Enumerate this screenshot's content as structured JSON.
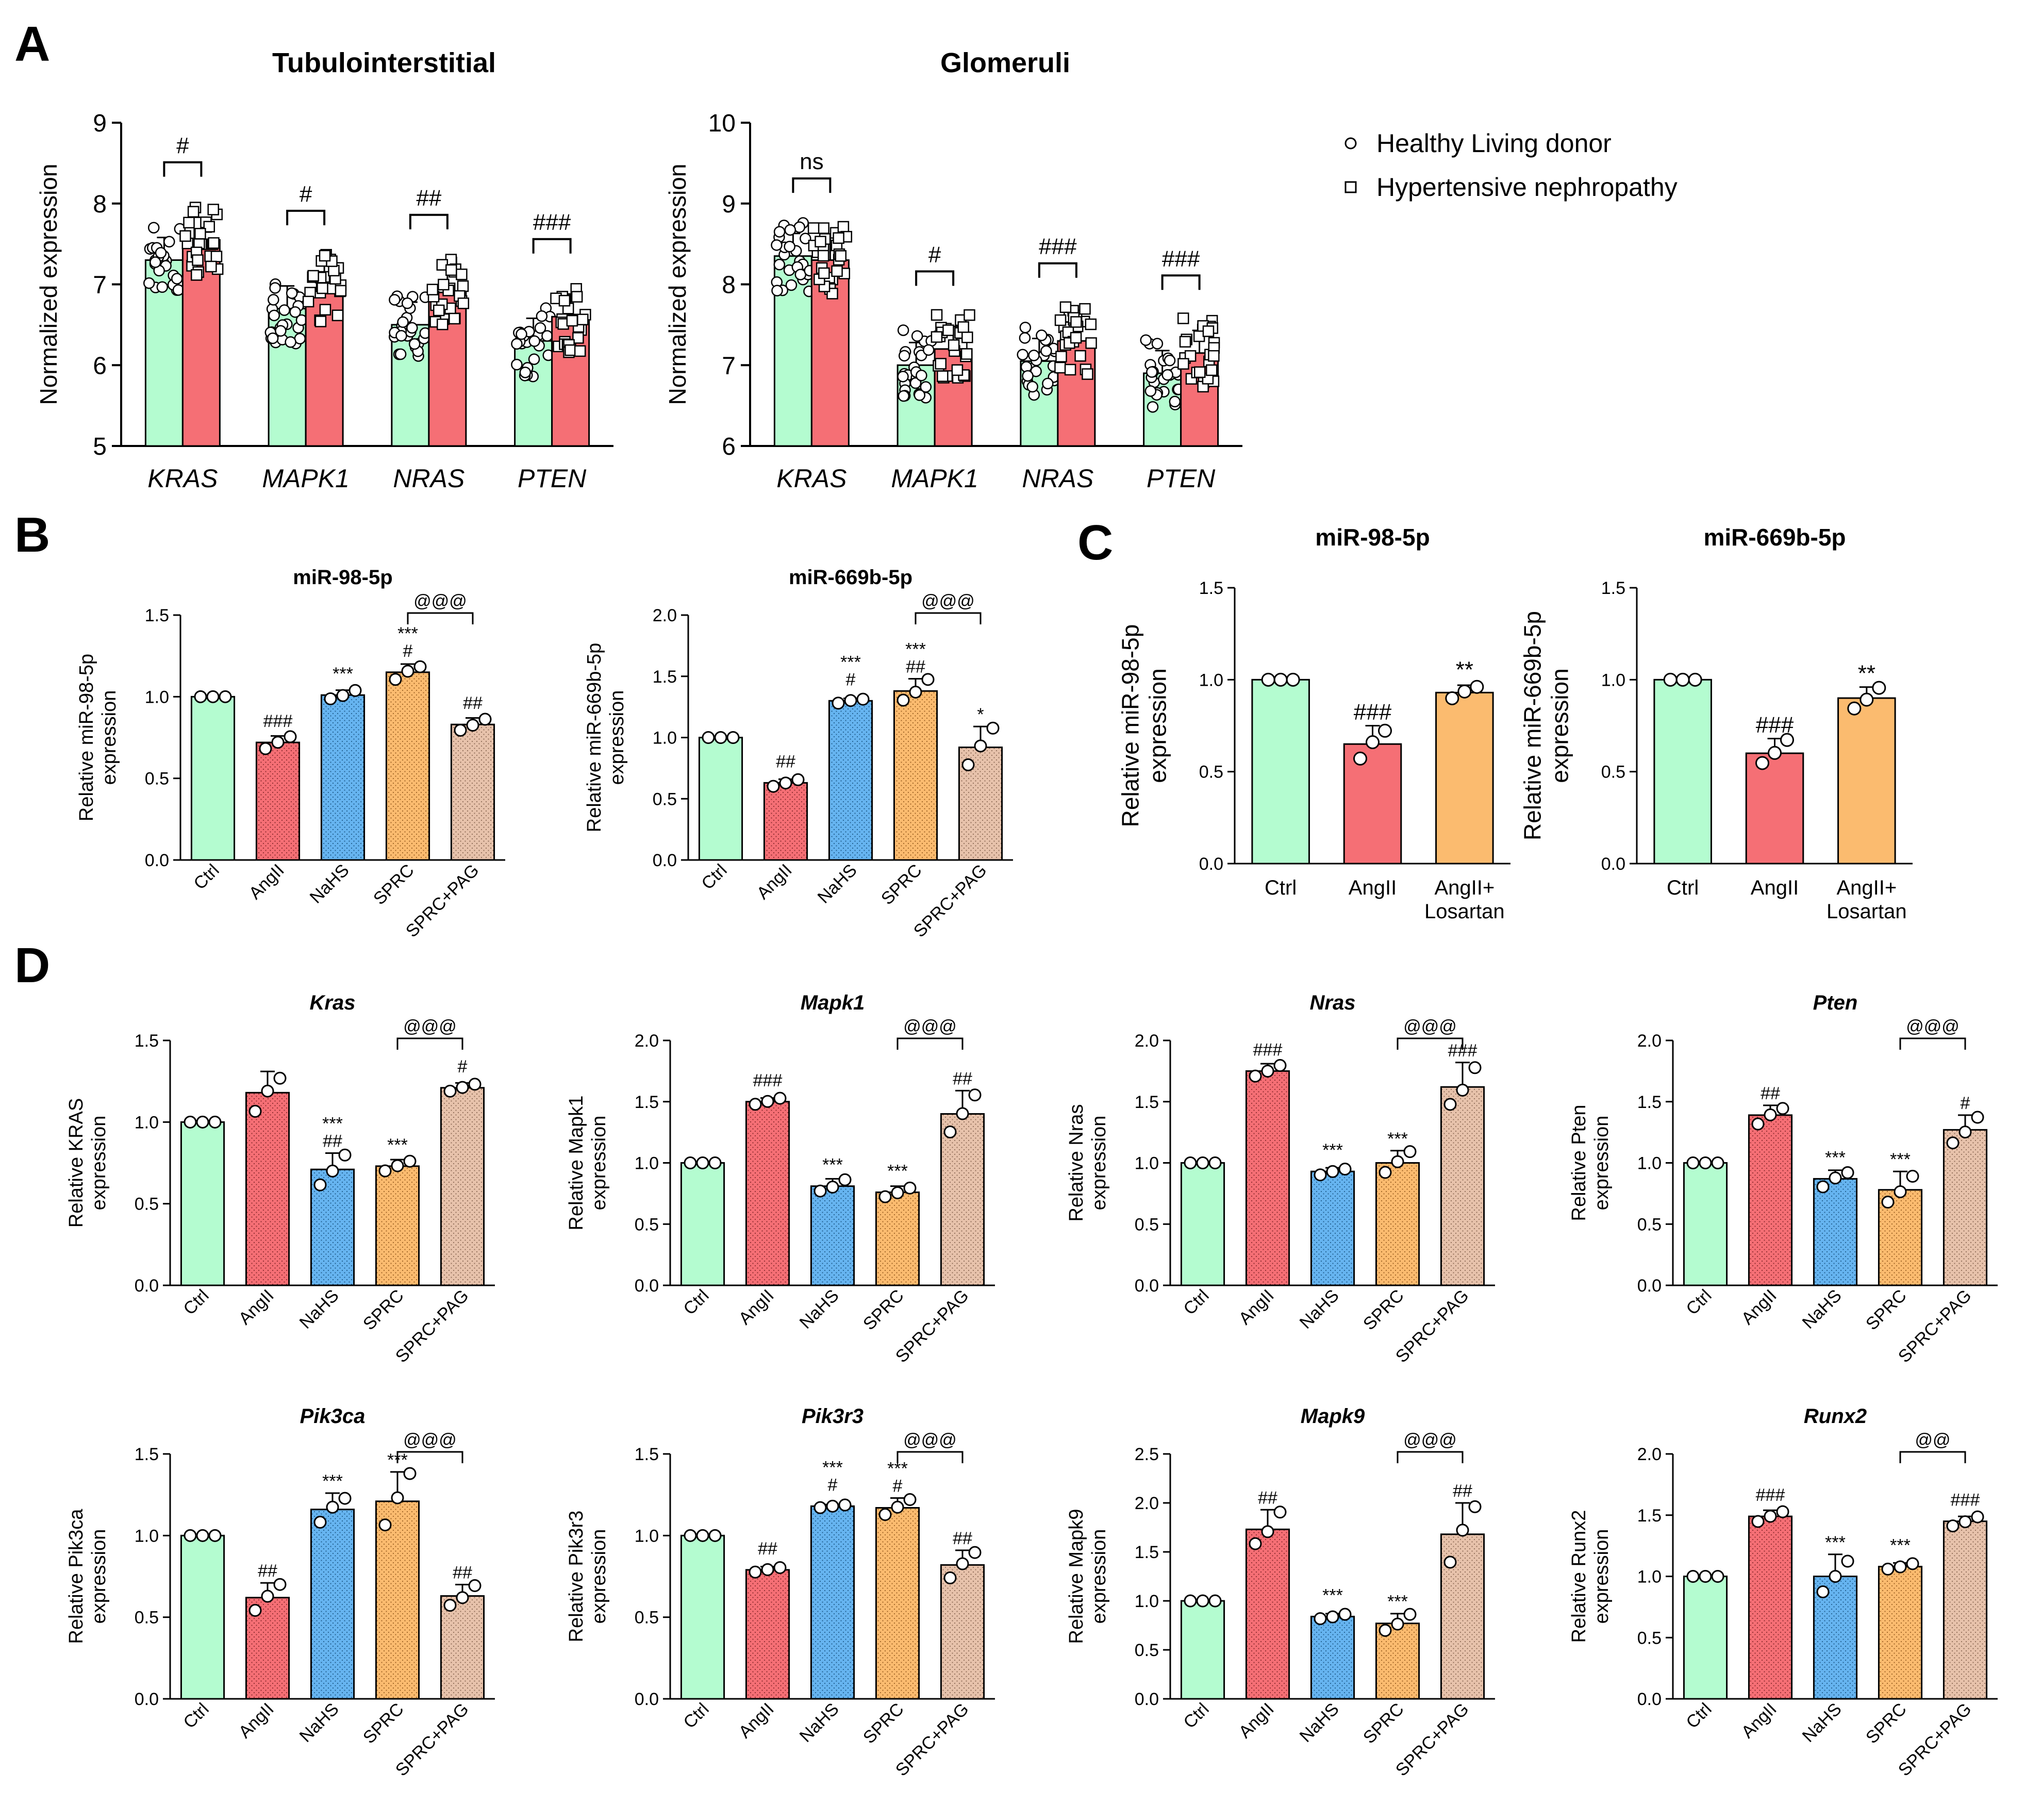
{
  "colors": {
    "ctrl": "#b4fcd0",
    "angii": "#f56f75",
    "nahs": "#66b4f0",
    "sprc": "#fbbb6f",
    "sprc_pag": "#e7c2ab",
    "healthy": "#b4fcd0",
    "hypertensive": "#f56f75"
  },
  "panel_labels": [
    "A",
    "B",
    "C",
    "D"
  ],
  "legend": {
    "healthy_label": "Healthy Living donor",
    "hypertensive_label": "Hypertensive nephropathy",
    "healthy_icon": "circle-marker",
    "hypertensive_icon": "square-marker"
  },
  "chart_data": [
    {
      "id": "A1",
      "type": "bar",
      "title": "Tubulointerstitial",
      "ylabel": "Normalized expression",
      "ylim": [
        5,
        9
      ],
      "yticks": [
        "5",
        "6",
        "7",
        "8",
        "9"
      ],
      "categories": [
        "KRAS",
        "MAPK1",
        "NRAS",
        "PTEN"
      ],
      "series": [
        {
          "name": "Healthy Living donor",
          "values": [
            7.3,
            6.7,
            6.5,
            6.3
          ]
        },
        {
          "name": "Hypertensive nephropathy",
          "values": [
            7.55,
            6.95,
            6.9,
            6.6
          ]
        }
      ],
      "significance": [
        "#",
        "#",
        "##",
        "###"
      ]
    },
    {
      "id": "A2",
      "type": "bar",
      "title": "Glomeruli",
      "ylabel": "Normalized expression",
      "ylim": [
        6,
        10
      ],
      "yticks": [
        "6",
        "7",
        "8",
        "9",
        "10"
      ],
      "categories": [
        "KRAS",
        "MAPK1",
        "NRAS",
        "PTEN"
      ],
      "series": [
        {
          "name": "Healthy Living donor",
          "values": [
            8.35,
            7.0,
            7.05,
            6.9
          ]
        },
        {
          "name": "Hypertensive nephropathy",
          "values": [
            8.3,
            7.2,
            7.3,
            7.15
          ]
        }
      ],
      "significance": [
        "ns",
        "#",
        "###",
        "###"
      ]
    },
    {
      "id": "B1",
      "type": "bar",
      "title": "miR-98-5p",
      "ylabel": [
        "Relative miR-98-5p",
        "expression"
      ],
      "ylim": [
        0,
        1.5
      ],
      "yticks": [
        "0.0",
        "0.5",
        "1.0",
        "1.5"
      ],
      "categories": [
        "Ctrl",
        "AngII",
        "NaHS",
        "SPRC",
        "SPRC+PAG"
      ],
      "values": [
        1.0,
        0.72,
        1.01,
        1.15,
        0.83
      ],
      "errors": [
        0.0,
        0.04,
        0.03,
        0.05,
        0.04
      ],
      "annotations": [
        "",
        "###",
        "***",
        "***|#",
        "##"
      ],
      "bracket": "@@@"
    },
    {
      "id": "B2",
      "type": "bar",
      "title": "miR-669b-5p",
      "ylabel": [
        "Relative miR-669b-5p",
        "expression"
      ],
      "ylim": [
        0,
        2.0
      ],
      "yticks": [
        "0.0",
        "0.5",
        "1.0",
        "1.5",
        "2.0"
      ],
      "categories": [
        "Ctrl",
        "AngII",
        "NaHS",
        "SPRC",
        "SPRC+PAG"
      ],
      "values": [
        1.0,
        0.63,
        1.3,
        1.38,
        0.92
      ],
      "errors": [
        0.0,
        0.03,
        0.02,
        0.1,
        0.17
      ],
      "annotations": [
        "",
        "##",
        "***|#",
        "***|##",
        "*"
      ],
      "bracket": "@@@"
    },
    {
      "id": "C1",
      "type": "bar",
      "title": "miR-98-5p",
      "ylabel": [
        "Relative miR-98-5p",
        "expression"
      ],
      "ylim": [
        0,
        1.5
      ],
      "yticks": [
        "0.0",
        "0.5",
        "1.0",
        "1.5"
      ],
      "categories": [
        "Ctrl",
        "AngII",
        "AngII+|Losartan"
      ],
      "values": [
        1.0,
        0.65,
        0.93
      ],
      "errors": [
        0.0,
        0.1,
        0.04
      ],
      "annotations": [
        "",
        "###",
        "**"
      ]
    },
    {
      "id": "C2",
      "type": "bar",
      "title": "miR-669b-5p",
      "ylabel": [
        "Relative miR-669b-5p",
        "expression"
      ],
      "ylim": [
        0,
        1.5
      ],
      "yticks": [
        "0.0",
        "0.5",
        "1.0",
        "1.5"
      ],
      "categories": [
        "Ctrl",
        "AngII",
        "AngII+|Losartan"
      ],
      "values": [
        1.0,
        0.6,
        0.9
      ],
      "errors": [
        0.0,
        0.08,
        0.06
      ],
      "annotations": [
        "",
        "###",
        "**"
      ]
    },
    {
      "id": "D1",
      "type": "bar",
      "title": "Kras",
      "ylabel": [
        "Relative KRAS",
        "expression"
      ],
      "ylim": [
        0,
        1.5
      ],
      "yticks": [
        "0.0",
        "0.5",
        "1.0",
        "1.5"
      ],
      "categories": [
        "Ctrl",
        "AngII",
        "NaHS",
        "SPRC",
        "SPRC+PAG"
      ],
      "values": [
        1.0,
        1.18,
        0.71,
        0.73,
        1.21
      ],
      "errors": [
        0.0,
        0.13,
        0.1,
        0.04,
        0.03
      ],
      "annotations": [
        "",
        "",
        "***|##",
        "***",
        "#"
      ],
      "bracket": "@@@"
    },
    {
      "id": "D2",
      "type": "bar",
      "title": "Mapk1",
      "ylabel": [
        "Relative Mapk1",
        "expression"
      ],
      "ylim": [
        0,
        2.0
      ],
      "yticks": [
        "0.0",
        "0.5",
        "1.0",
        "1.5",
        "2.0"
      ],
      "categories": [
        "Ctrl",
        "AngII",
        "NaHS",
        "SPRC",
        "SPRC+PAG"
      ],
      "values": [
        1.0,
        1.5,
        0.81,
        0.76,
        1.4
      ],
      "errors": [
        0.0,
        0.03,
        0.06,
        0.05,
        0.19
      ],
      "annotations": [
        "",
        "###",
        "***",
        "***",
        "##"
      ],
      "bracket": "@@@"
    },
    {
      "id": "D3",
      "type": "bar",
      "title": "Nras",
      "ylabel": [
        "Relative Nras",
        "expression"
      ],
      "ylim": [
        0,
        2.0
      ],
      "yticks": [
        "0.0",
        "0.5",
        "1.0",
        "1.5",
        "2.0"
      ],
      "categories": [
        "Ctrl",
        "AngII",
        "NaHS",
        "SPRC",
        "SPRC+PAG"
      ],
      "values": [
        1.0,
        1.75,
        0.93,
        1.0,
        1.62
      ],
      "errors": [
        0.0,
        0.06,
        0.03,
        0.1,
        0.2
      ],
      "annotations": [
        "",
        "###",
        "***",
        "***",
        "###"
      ],
      "bracket": "@@@"
    },
    {
      "id": "D4",
      "type": "bar",
      "title": "Pten",
      "ylabel": [
        "Relative Pten",
        "expression"
      ],
      "ylim": [
        0,
        2.0
      ],
      "yticks": [
        "0.0",
        "0.5",
        "1.0",
        "1.5",
        "2.0"
      ],
      "categories": [
        "Ctrl",
        "AngII",
        "NaHS",
        "SPRC",
        "SPRC+PAG"
      ],
      "values": [
        1.0,
        1.39,
        0.87,
        0.78,
        1.27
      ],
      "errors": [
        0.0,
        0.08,
        0.07,
        0.15,
        0.12
      ],
      "annotations": [
        "",
        "##",
        "***",
        "***",
        "#"
      ],
      "bracket": "@@@"
    },
    {
      "id": "D5",
      "type": "bar",
      "title": "Pik3ca",
      "ylabel": [
        "Relative Pik3ca",
        "expression"
      ],
      "ylim": [
        0,
        1.5
      ],
      "yticks": [
        "0.0",
        "0.5",
        "1.0",
        "1.5"
      ],
      "categories": [
        "Ctrl",
        "AngII",
        "NaHS",
        "SPRC",
        "SPRC+PAG"
      ],
      "values": [
        1.0,
        0.62,
        1.16,
        1.21,
        0.63
      ],
      "errors": [
        0.0,
        0.09,
        0.1,
        0.18,
        0.07
      ],
      "annotations": [
        "",
        "##",
        "***",
        "***",
        "##"
      ],
      "bracket": "@@@"
    },
    {
      "id": "D6",
      "type": "bar",
      "title": "Pik3r3",
      "ylabel": [
        "Relative Pik3r3",
        "expression"
      ],
      "ylim": [
        0,
        1.5
      ],
      "yticks": [
        "0.0",
        "0.5",
        "1.0",
        "1.5"
      ],
      "categories": [
        "Ctrl",
        "AngII",
        "NaHS",
        "SPRC",
        "SPRC+PAG"
      ],
      "values": [
        1.0,
        0.79,
        1.18,
        1.17,
        0.82
      ],
      "errors": [
        0.0,
        0.02,
        0.01,
        0.06,
        0.09
      ],
      "annotations": [
        "",
        "##",
        "***|#",
        "***|#",
        "##"
      ],
      "bracket": "@@@"
    },
    {
      "id": "D7",
      "type": "bar",
      "title": "Mapk9",
      "ylabel": [
        "Relative Mapk9",
        "expression"
      ],
      "ylim": [
        0,
        2.5
      ],
      "yticks": [
        "0.0",
        "0.5",
        "1.0",
        "1.5",
        "2.0",
        "2.5"
      ],
      "categories": [
        "Ctrl",
        "AngII",
        "NaHS",
        "SPRC",
        "SPRC+PAG"
      ],
      "values": [
        1.0,
        1.73,
        0.84,
        0.77,
        1.68
      ],
      "errors": [
        0.0,
        0.2,
        0.03,
        0.1,
        0.32
      ],
      "annotations": [
        "",
        "##",
        "***",
        "***",
        "##"
      ],
      "bracket": "@@@"
    },
    {
      "id": "D8",
      "type": "bar",
      "title": "Runx2",
      "ylabel": [
        "Relative Runx2",
        "expression"
      ],
      "ylim": [
        0,
        2.0
      ],
      "yticks": [
        "0.0",
        "0.5",
        "1.0",
        "1.5",
        "2.0"
      ],
      "categories": [
        "Ctrl",
        "AngII",
        "NaHS",
        "SPRC",
        "SPRC+PAG"
      ],
      "values": [
        1.0,
        1.49,
        1.0,
        1.08,
        1.45
      ],
      "errors": [
        0.0,
        0.05,
        0.18,
        0.03,
        0.04
      ],
      "annotations": [
        "",
        "###",
        "***",
        "***",
        "###"
      ],
      "bracket": "@@"
    }
  ]
}
